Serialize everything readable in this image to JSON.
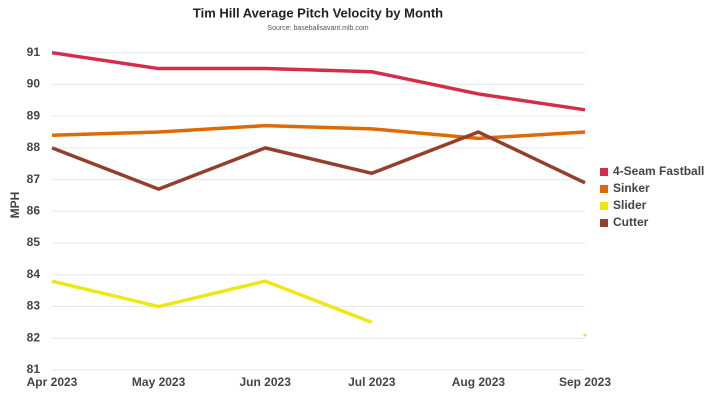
{
  "chart_data": {
    "type": "line",
    "title": "Tim Hill Average Pitch Velocity by Month",
    "subtitle": "Source: baseballsavant.mlb.com",
    "y_label": "MPH",
    "categories": [
      "Apr 2023",
      "May 2023",
      "Jun 2023",
      "Jul 2023",
      "Aug 2023",
      "Sep 2023"
    ],
    "series": [
      {
        "name": "4-Seam Fastball",
        "color": "#d22d49",
        "values": [
          91.0,
          90.5,
          90.5,
          90.4,
          89.7,
          89.2
        ]
      },
      {
        "name": "Sinker",
        "color": "#de6a04",
        "values": [
          88.4,
          88.5,
          88.7,
          88.6,
          88.3,
          88.5
        ]
      },
      {
        "name": "Slider",
        "color": "#eee716",
        "values": [
          83.8,
          83.0,
          83.8,
          82.5,
          null,
          82.1
        ]
      },
      {
        "name": "Cutter",
        "color": "#933f2c",
        "values": [
          88.0,
          86.7,
          88.0,
          87.2,
          88.5,
          86.9
        ]
      }
    ],
    "ylim": [
      81,
      91.4
    ],
    "yticks": [
      81,
      82,
      83,
      84,
      85,
      86,
      87,
      88,
      89,
      90,
      91
    ],
    "grid": true,
    "legend": "right"
  }
}
